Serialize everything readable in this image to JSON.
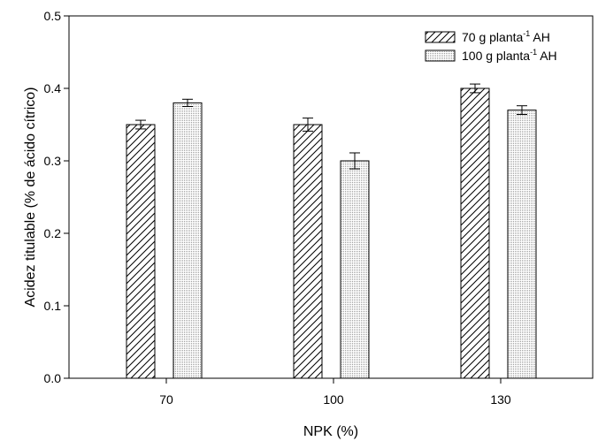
{
  "chart_data": {
    "type": "bar",
    "title": "",
    "xlabel": "NPK (%)",
    "ylabel": "Acidez titulable (% de ácido cítrico)",
    "categories": [
      "70",
      "100",
      "130"
    ],
    "ylim": [
      0,
      0.5
    ],
    "yticks": [
      "0.0",
      "0.1",
      "0.2",
      "0.3",
      "0.4",
      "0.5"
    ],
    "grid": false,
    "legend_position": "top-right",
    "series": [
      {
        "legend_main": "70 g planta",
        "legend_sup": "-1",
        "legend_tail": " AH",
        "pattern": "diagonal-hatch",
        "values": [
          0.35,
          0.35,
          0.4
        ],
        "errors": [
          0.006,
          0.009,
          0.006
        ]
      },
      {
        "legend_main": "100 g planta",
        "legend_sup": "-1",
        "legend_tail": " AH",
        "pattern": "fine-dots",
        "values": [
          0.38,
          0.3,
          0.37
        ],
        "errors": [
          0.005,
          0.011,
          0.006
        ]
      }
    ]
  }
}
